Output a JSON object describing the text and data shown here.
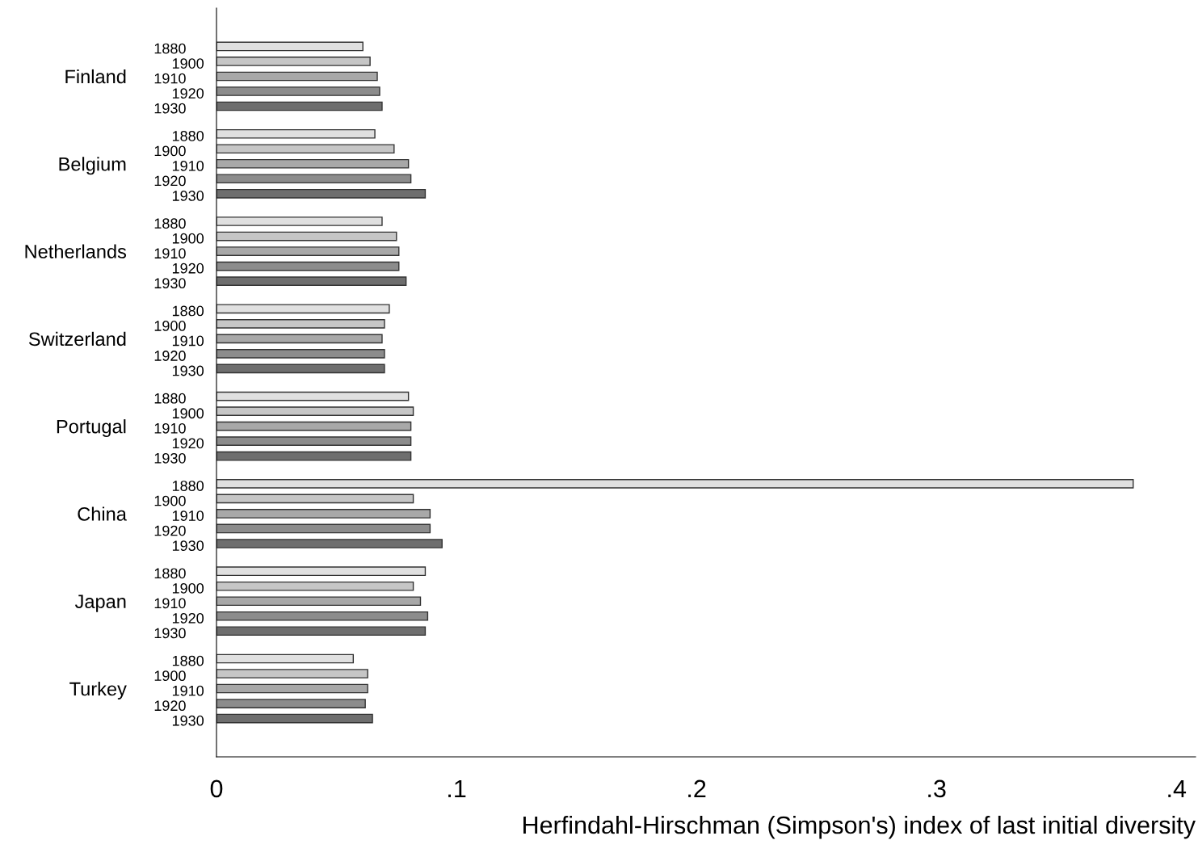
{
  "chart_data": {
    "type": "bar",
    "orientation": "horizontal",
    "xlabel": "Herfindahl-Hirschman (Simpson's) index of last initial diversity",
    "categories": [
      "Finland",
      "Belgium",
      "Netherlands",
      "Switzerland",
      "Portugal",
      "China",
      "Japan",
      "Turkey"
    ],
    "series": [
      {
        "name": "1880",
        "color": "#e0e0e0",
        "values": [
          0.061,
          0.066,
          0.069,
          0.072,
          0.08,
          0.382,
          0.087,
          0.057
        ]
      },
      {
        "name": "1900",
        "color": "#c6c6c6",
        "values": [
          0.064,
          0.074,
          0.075,
          0.07,
          0.082,
          0.082,
          0.082,
          0.063
        ]
      },
      {
        "name": "1910",
        "color": "#a8a8a8",
        "values": [
          0.067,
          0.08,
          0.076,
          0.069,
          0.081,
          0.089,
          0.085,
          0.063
        ]
      },
      {
        "name": "1920",
        "color": "#8c8c8c",
        "values": [
          0.068,
          0.081,
          0.076,
          0.07,
          0.081,
          0.089,
          0.088,
          0.062
        ]
      },
      {
        "name": "1930",
        "color": "#6e6e6e",
        "values": [
          0.069,
          0.087,
          0.079,
          0.07,
          0.081,
          0.094,
          0.087,
          0.065
        ]
      }
    ],
    "xlim": [
      0,
      0.408
    ],
    "xticks": [
      {
        "value": 0,
        "label": "0"
      },
      {
        "value": 0.1,
        "label": ".1"
      },
      {
        "value": 0.2,
        "label": ".2"
      },
      {
        "value": 0.3,
        "label": ".3"
      },
      {
        "value": 0.4,
        "label": ".4"
      }
    ],
    "grid": false,
    "legend": false
  }
}
